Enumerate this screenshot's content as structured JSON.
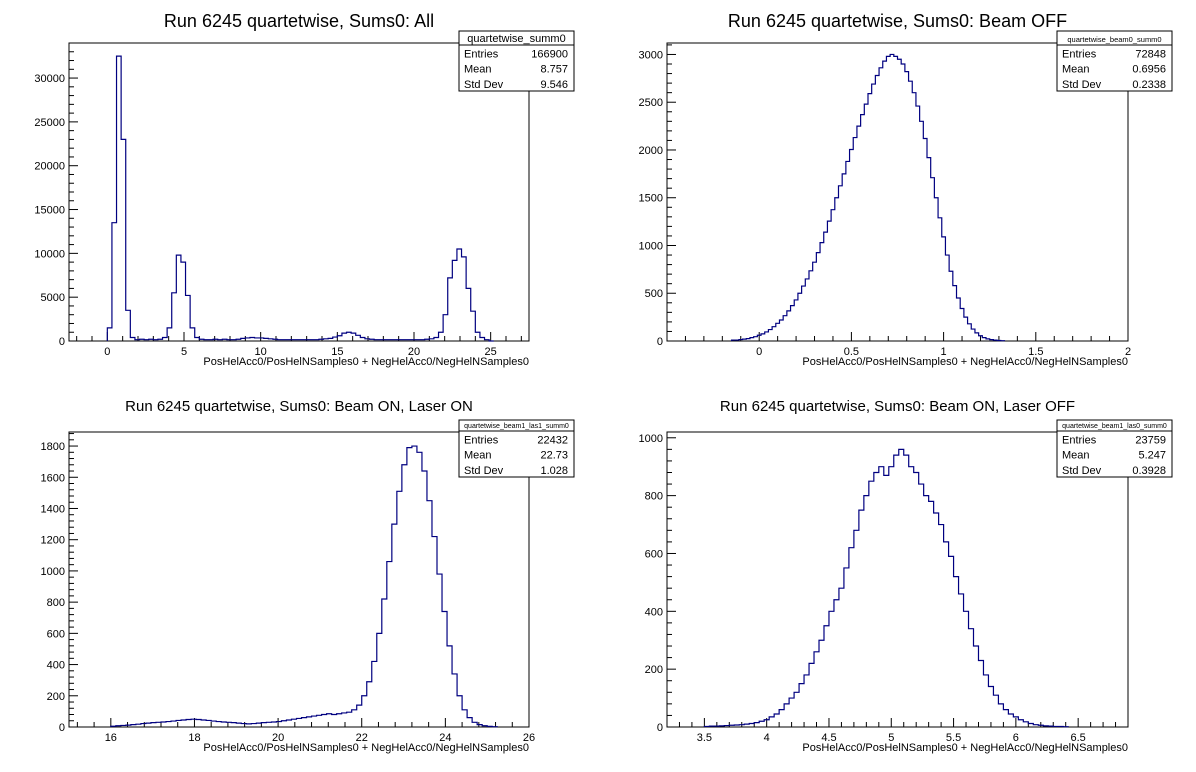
{
  "chart_data": [
    {
      "type": "histogram",
      "title": "Run 6245 quartetwise, Sums0: All",
      "xlabel": "PosHelAcc0/PosHelNSamples0 + NegHelAcc0/NegHelNSamples0",
      "ylabel": "",
      "xlim": [
        -2.5,
        27.5
      ],
      "ylim": [
        0,
        34000
      ],
      "xticks": [
        0,
        5,
        10,
        15,
        20,
        25
      ],
      "yticks": [
        0,
        5000,
        10000,
        15000,
        20000,
        25000,
        30000
      ],
      "stats": {
        "name": "quartetwise_summ0",
        "entries": "166900",
        "mean": "8.757",
        "std_dev": "9.546"
      },
      "x_start": 0.0,
      "bin_width": 0.3,
      "values": [
        1500,
        13500,
        32500,
        23000,
        3500,
        400,
        150,
        200,
        150,
        200,
        150,
        200,
        400,
        1500,
        5500,
        9800,
        9000,
        5200,
        1500,
        400,
        200,
        150,
        150,
        200,
        150,
        200,
        150,
        150,
        200,
        300,
        350,
        400,
        350,
        350,
        300,
        250,
        200,
        150,
        150,
        150,
        150,
        150,
        150,
        150,
        150,
        150,
        200,
        250,
        300,
        450,
        600,
        900,
        1000,
        900,
        650,
        400,
        250,
        200,
        150,
        150,
        150,
        150,
        150,
        150,
        150,
        150,
        150,
        150,
        150,
        200,
        250,
        400,
        1000,
        3000,
        7200,
        9200,
        10500,
        9600,
        6000,
        3400,
        1000,
        400,
        150,
        0
      ]
    },
    {
      "type": "histogram",
      "title": "Run 6245 quartetwise, Sums0: Beam OFF",
      "xlabel": "PosHelAcc0/PosHelNSamples0 + NegHelAcc0/NegHelNSamples0",
      "ylabel": "",
      "xlim": [
        -0.5,
        2.0
      ],
      "ylim": [
        0,
        3120
      ],
      "xticks": [
        0,
        0.5,
        1,
        1.5,
        2
      ],
      "yticks": [
        0,
        500,
        1000,
        1500,
        2000,
        2500,
        3000
      ],
      "stats": {
        "name": "quartetwise_beam0_summ0",
        "entries": "72848",
        "mean": "0.6956",
        "std_dev": "0.2338"
      },
      "x_start": -0.15,
      "bin_width": 0.02,
      "values": [
        10,
        10,
        15,
        20,
        25,
        35,
        45,
        60,
        75,
        95,
        120,
        150,
        185,
        220,
        265,
        315,
        370,
        430,
        500,
        575,
        650,
        735,
        825,
        925,
        1030,
        1140,
        1255,
        1375,
        1500,
        1625,
        1750,
        1880,
        2005,
        2130,
        2250,
        2370,
        2480,
        2590,
        2690,
        2780,
        2860,
        2930,
        2980,
        3000,
        2980,
        2950,
        2900,
        2820,
        2720,
        2600,
        2460,
        2300,
        2120,
        1920,
        1710,
        1500,
        1290,
        1090,
        900,
        730,
        580,
        450,
        340,
        250,
        180,
        125,
        85,
        55,
        35,
        22,
        14,
        9,
        5,
        3
      ]
    },
    {
      "type": "histogram",
      "title": "Run 6245 quartetwise, Sums0: Beam ON, Laser ON",
      "xlabel": "PosHelAcc0/PosHelNSamples0 + NegHelAcc0/NegHelNSamples0",
      "ylabel": "",
      "xlim": [
        15.0,
        26.0
      ],
      "ylim": [
        0,
        1890
      ],
      "xticks": [
        16,
        18,
        20,
        22,
        24,
        26
      ],
      "yticks": [
        0,
        200,
        400,
        600,
        800,
        1000,
        1200,
        1400,
        1600,
        1800
      ],
      "stats": {
        "name": "quartetwise_beam1_las1_summ0",
        "entries": "22432",
        "mean": "22.73",
        "std_dev": "1.028"
      },
      "x_start": 16.0,
      "bin_width": 0.12,
      "values": [
        5,
        8,
        10,
        12,
        15,
        18,
        22,
        25,
        28,
        30,
        32,
        35,
        38,
        42,
        45,
        48,
        50,
        48,
        45,
        42,
        38,
        35,
        32,
        30,
        28,
        25,
        22,
        20,
        22,
        25,
        28,
        30,
        32,
        35,
        40,
        45,
        50,
        55,
        60,
        65,
        70,
        75,
        80,
        85,
        80,
        85,
        90,
        95,
        110,
        140,
        200,
        290,
        420,
        600,
        820,
        1060,
        1300,
        1510,
        1680,
        1790,
        1800,
        1760,
        1640,
        1450,
        1220,
        980,
        740,
        520,
        340,
        200,
        110,
        60,
        30,
        15,
        8,
        4,
        2
      ]
    },
    {
      "type": "histogram",
      "title": "Run 6245 quartetwise, Sums0: Beam ON, Laser OFF",
      "xlabel": "PosHelAcc0/PosHelNSamples0 + NegHelAcc0/NegHelNSamples0",
      "ylabel": "",
      "xlim": [
        3.2,
        6.9
      ],
      "ylim": [
        0,
        1020
      ],
      "xticks": [
        3.5,
        4,
        4.5,
        5,
        5.5,
        6,
        6.5
      ],
      "yticks": [
        0,
        200,
        400,
        600,
        800,
        1000
      ],
      "stats": {
        "name": "quartetwise_beam1_las0_summ0",
        "entries": "23759",
        "mean": "5.247",
        "std_dev": "0.3928"
      },
      "x_start": 3.5,
      "bin_width": 0.04,
      "values": [
        2,
        3,
        3,
        4,
        5,
        6,
        7,
        8,
        10,
        12,
        15,
        20,
        25,
        35,
        45,
        60,
        80,
        100,
        120,
        150,
        180,
        220,
        260,
        300,
        350,
        400,
        440,
        480,
        550,
        620,
        680,
        750,
        800,
        850,
        880,
        900,
        870,
        900,
        940,
        960,
        940,
        900,
        880,
        840,
        800,
        780,
        740,
        700,
        640,
        590,
        520,
        460,
        400,
        340,
        280,
        230,
        180,
        140,
        110,
        80,
        60,
        45,
        35,
        25,
        18,
        12,
        8,
        6,
        4,
        3,
        2,
        2,
        1
      ]
    }
  ]
}
